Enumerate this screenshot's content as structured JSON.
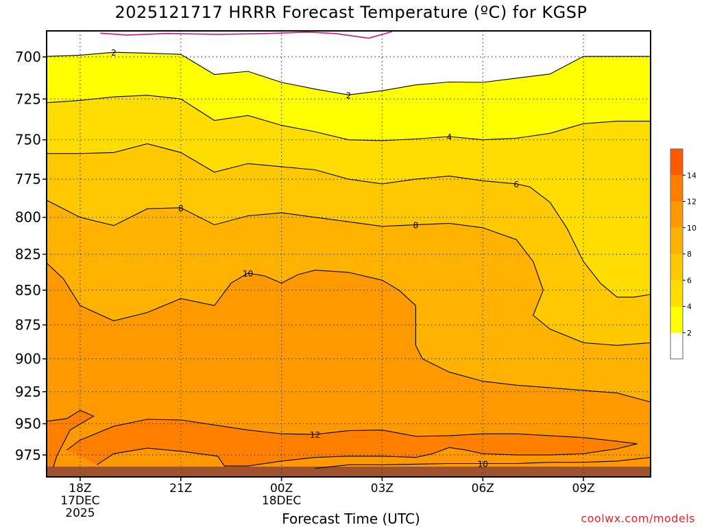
{
  "chart_data": {
    "type": "contour",
    "title": "2025121717 HRRR Forecast Temperature (ºC) for KGSP",
    "xlabel": "Forecast Time (UTC)",
    "ylabel": "",
    "credit": "coolwx.com/models",
    "x_ticks": [
      {
        "t": 1,
        "lines": [
          "18Z",
          "17DEC",
          "2025"
        ]
      },
      {
        "t": 4,
        "lines": [
          "21Z"
        ]
      },
      {
        "t": 7,
        "lines": [
          "00Z",
          "18DEC"
        ]
      },
      {
        "t": 10,
        "lines": [
          "03Z"
        ]
      },
      {
        "t": 13,
        "lines": [
          "06Z"
        ]
      },
      {
        "t": 16,
        "lines": [
          "09Z"
        ]
      }
    ],
    "xlim": [
      0,
      18
    ],
    "y_ticks": [
      700,
      725,
      750,
      775,
      800,
      825,
      850,
      875,
      900,
      925,
      950,
      975
    ],
    "ylim": [
      685,
      993
    ],
    "y_scale": "log-pressure (inverted)",
    "grid": true,
    "colorbar": {
      "levels": [
        2,
        4,
        6,
        8,
        10,
        12,
        14
      ],
      "colors": [
        "#ffffff",
        "#ffff00",
        "#ffdd00",
        "#ffc800",
        "#ffb300",
        "#ff9900",
        "#ff7f00",
        "#ff5a00"
      ]
    },
    "ground_color": "#a0522d",
    "contours": [
      {
        "level": 0,
        "color": "#c71585",
        "label": "",
        "points": [
          [
            1.6,
            686.3
          ],
          [
            2.4,
            687.4
          ],
          [
            3.6,
            686.5
          ],
          [
            5.1,
            687.0
          ],
          [
            6.4,
            686.6
          ],
          [
            7.8,
            685.7
          ],
          [
            8.6,
            686.5
          ],
          [
            9.6,
            689.2
          ],
          [
            10.3,
            685.4
          ]
        ]
      },
      {
        "level": 2,
        "label": "2",
        "points": [
          [
            0,
            699.7
          ],
          [
            1.0,
            699.0
          ],
          [
            2.0,
            697.3
          ],
          [
            3.0,
            697.8
          ],
          [
            4.0,
            698.5
          ],
          [
            5.0,
            710.3
          ],
          [
            6.0,
            708.5
          ],
          [
            7.0,
            715.0
          ],
          [
            8.0,
            719.0
          ],
          [
            9.0,
            722.5
          ],
          [
            10.0,
            720.0
          ],
          [
            11.0,
            716.5
          ],
          [
            12.0,
            714.8
          ],
          [
            13.0,
            715.0
          ],
          [
            14.0,
            712.5
          ],
          [
            15.0,
            710.0
          ],
          [
            16.0,
            699.7
          ],
          [
            17.0,
            699.7
          ],
          [
            18,
            699.7
          ]
        ]
      },
      {
        "level": 4,
        "label": "4",
        "points": [
          [
            0,
            727.2
          ],
          [
            1.0,
            725.8
          ],
          [
            2.0,
            723.7
          ],
          [
            3.0,
            722.7
          ],
          [
            4.0,
            724.9
          ],
          [
            5.0,
            738.0
          ],
          [
            6.0,
            735.0
          ],
          [
            7.0,
            741.0
          ],
          [
            8.0,
            745.0
          ],
          [
            9.0,
            750.0
          ],
          [
            10.0,
            750.5
          ],
          [
            11.0,
            749.5
          ],
          [
            12.0,
            748.0
          ],
          [
            13.0,
            750.0
          ],
          [
            14.0,
            749.0
          ],
          [
            15.0,
            746.0
          ],
          [
            16.0,
            740.0
          ],
          [
            17.0,
            738.5
          ],
          [
            18,
            738.5
          ]
        ]
      },
      {
        "level": 6,
        "label": "6",
        "points": [
          [
            0,
            758.6
          ],
          [
            1.0,
            758.6
          ],
          [
            2.0,
            758.0
          ],
          [
            3.0,
            752.5
          ],
          [
            4.0,
            758.0
          ],
          [
            5.0,
            770.5
          ],
          [
            6.0,
            765.0
          ],
          [
            7.0,
            767.0
          ],
          [
            8.0,
            769.0
          ],
          [
            9.0,
            775.0
          ],
          [
            10.0,
            778.0
          ],
          [
            11.0,
            775.0
          ],
          [
            12.0,
            773.0
          ],
          [
            13.0,
            776.0
          ],
          [
            14.0,
            778.0
          ],
          [
            14.4,
            780.0
          ],
          [
            15.0,
            790.0
          ],
          [
            15.5,
            807.0
          ],
          [
            16.0,
            830.0
          ],
          [
            16.5,
            845.0
          ],
          [
            17.0,
            855.0
          ],
          [
            17.5,
            855.0
          ],
          [
            18,
            853.0
          ]
        ]
      },
      {
        "level": 8,
        "label": "8",
        "points": [
          [
            0,
            788.7
          ],
          [
            1.0,
            800.0
          ],
          [
            2.0,
            805.5
          ],
          [
            3.0,
            794.3
          ],
          [
            4.0,
            793.7
          ],
          [
            5.0,
            805.0
          ],
          [
            6.0,
            799.0
          ],
          [
            7.0,
            797.0
          ],
          [
            8.0,
            800.0
          ],
          [
            9.0,
            803.0
          ],
          [
            10.0,
            806.0
          ],
          [
            11.0,
            805.0
          ],
          [
            12.0,
            804.0
          ],
          [
            13.0,
            807.0
          ],
          [
            14.0,
            815.0
          ],
          [
            14.5,
            830.0
          ],
          [
            14.8,
            850.0
          ],
          [
            14.5,
            868.0
          ],
          [
            15.0,
            878.0
          ],
          [
            16.0,
            888.0
          ],
          [
            17.0,
            890.0
          ],
          [
            18,
            888.0
          ]
        ]
      },
      {
        "level": 10,
        "label": "10",
        "points": [
          [
            0,
            831.0
          ],
          [
            0.5,
            842.0
          ],
          [
            1.0,
            861.0
          ],
          [
            2.0,
            872.0
          ],
          [
            3.0,
            866.0
          ],
          [
            4.0,
            856.0
          ],
          [
            5.0,
            861.0
          ],
          [
            5.5,
            845.0
          ],
          [
            6.0,
            838.0
          ],
          [
            6.5,
            840.0
          ],
          [
            7.0,
            845.0
          ],
          [
            7.5,
            839.0
          ],
          [
            8.0,
            836.0
          ],
          [
            9.0,
            837.5
          ],
          [
            10.0,
            843.0
          ],
          [
            10.5,
            850.0
          ],
          [
            11.0,
            861.0
          ],
          [
            11.0,
            890.0
          ],
          [
            11.2,
            900.0
          ],
          [
            12.0,
            910.0
          ],
          [
            13.0,
            917.0
          ],
          [
            14.0,
            920.0
          ],
          [
            15.0,
            922.0
          ],
          [
            16.0,
            924.0
          ],
          [
            17.0,
            926.0
          ],
          [
            18,
            933.0
          ]
        ]
      },
      {
        "level": 12,
        "label": "12",
        "points": [
          [
            0.6,
            971.0
          ],
          [
            1.0,
            963.0
          ],
          [
            2.0,
            952.0
          ],
          [
            3.0,
            946.5
          ],
          [
            4.0,
            947.0
          ],
          [
            5.0,
            951.0
          ],
          [
            6.0,
            955.0
          ],
          [
            7.0,
            958.0
          ],
          [
            8.0,
            958.5
          ],
          [
            9.0,
            955.5
          ],
          [
            10.0,
            955.0
          ],
          [
            11.0,
            960.0
          ],
          [
            12.0,
            959.5
          ],
          [
            13.0,
            958.0
          ],
          [
            14.0,
            958.0
          ],
          [
            15.0,
            959.5
          ],
          [
            16.0,
            961.0
          ],
          [
            17.0,
            964.0
          ],
          [
            17.6,
            966.0
          ]
        ]
      },
      {
        "level": 12,
        "label": "",
        "points": [
          [
            17.6,
            966.0
          ],
          [
            17.0,
            970.0
          ],
          [
            16.0,
            974.0
          ],
          [
            15.0,
            975.0
          ],
          [
            14.0,
            975.0
          ],
          [
            13.0,
            974.0
          ],
          [
            12.5,
            971.0
          ],
          [
            12.0,
            969.0
          ],
          [
            11.5,
            974.0
          ],
          [
            11.0,
            977.0
          ],
          [
            10.0,
            976.0
          ],
          [
            9.0,
            976.0
          ],
          [
            8.0,
            977.0
          ],
          [
            7.0,
            980.0
          ],
          [
            6.0,
            984.0
          ],
          [
            5.3,
            984.0
          ],
          [
            5.1,
            976.0
          ],
          [
            4.0,
            972.0
          ],
          [
            3.0,
            969.5
          ],
          [
            2.0,
            974.0
          ],
          [
            1.5,
            983.0
          ]
        ]
      },
      {
        "level": 12,
        "label": "",
        "points": [
          [
            0,
            948.0
          ],
          [
            0.6,
            946.0
          ],
          [
            1.0,
            939.5
          ],
          [
            1.4,
            944.0
          ],
          [
            0.7,
            955.0
          ],
          [
            0.3,
            976.0
          ],
          [
            0.2,
            985.0
          ]
        ]
      },
      {
        "level": 10,
        "label": "10",
        "points": [
          [
            8.0,
            986.0
          ],
          [
            9.0,
            983.0
          ],
          [
            10.0,
            983.0
          ],
          [
            11.0,
            982.5
          ],
          [
            12.0,
            982.0
          ],
          [
            13.0,
            982.0
          ],
          [
            14.0,
            982.0
          ],
          [
            15.0,
            981.0
          ],
          [
            16.0,
            981.0
          ],
          [
            17.0,
            980.0
          ],
          [
            18,
            977.0
          ]
        ]
      }
    ]
  }
}
